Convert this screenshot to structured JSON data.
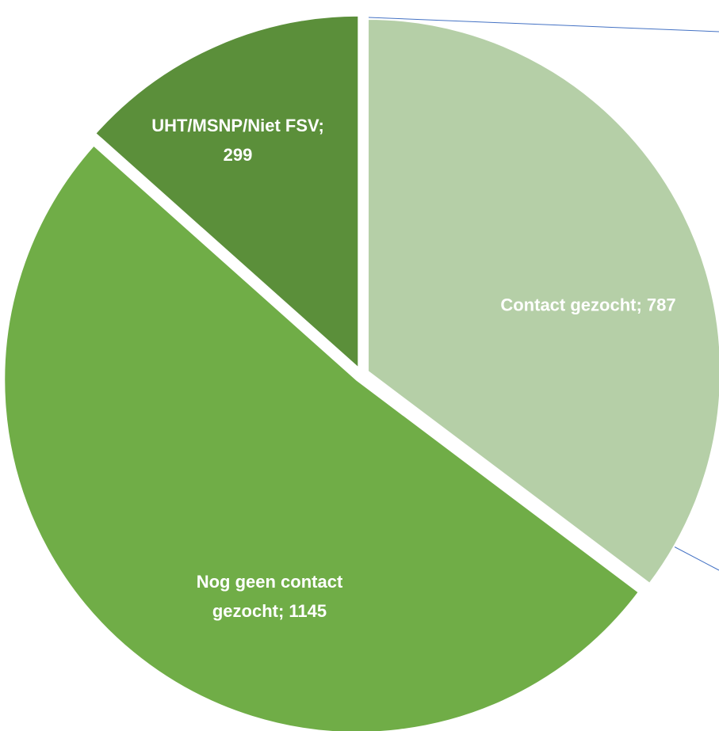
{
  "chart_data": {
    "type": "pie",
    "categories": [
      "Contact gezocht",
      "Nog geen contact gezocht",
      "UHT/MSNP/Niet FSV"
    ],
    "values": [
      787,
      1145,
      299
    ],
    "value_labels": [
      "Contact gezocht; 787",
      "Nog geen contact gezocht; 1145",
      "UHT/MSNP/Niet FSV; 299"
    ],
    "colors": [
      "#b5cfa7",
      "#70ad47",
      "#5b8f3a"
    ]
  }
}
